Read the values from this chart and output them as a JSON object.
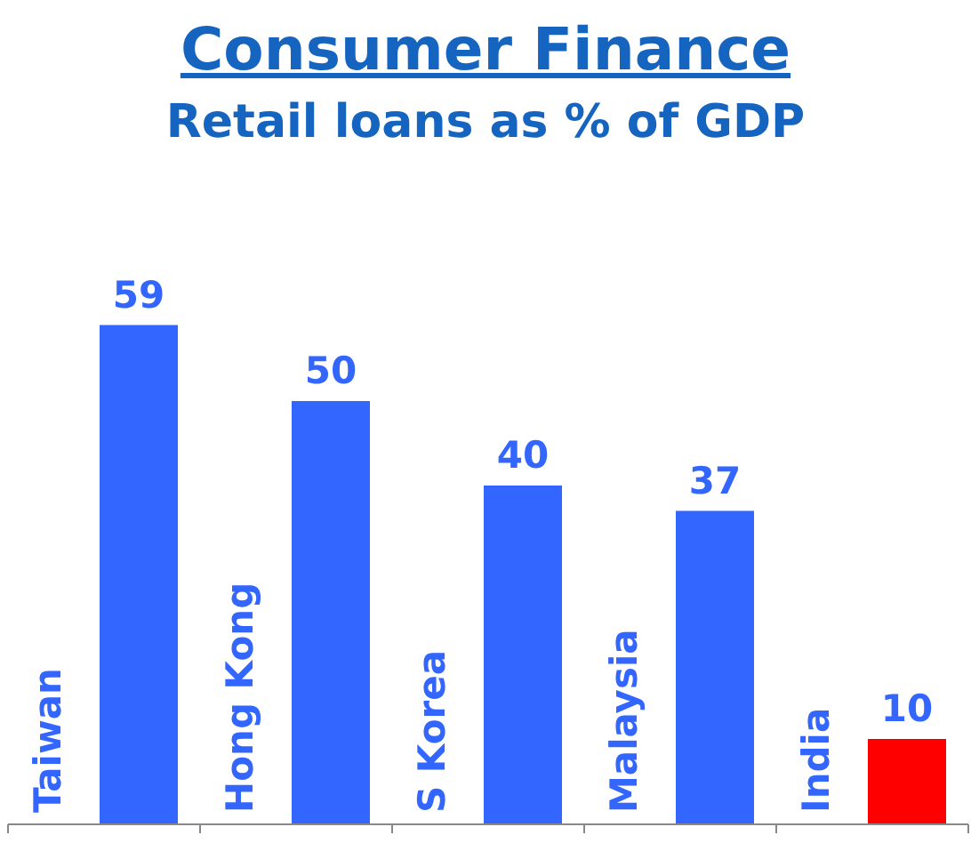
{
  "chart_data": {
    "type": "bar",
    "title": "Consumer Finance",
    "subtitle": "Retail loans as % of GDP",
    "categories": [
      "Taiwan",
      "Hong Kong",
      "S Korea",
      "Malaysia",
      "India"
    ],
    "values": [
      59,
      50,
      40,
      37,
      10
    ],
    "colors": [
      "#3366ff",
      "#3366ff",
      "#3366ff",
      "#3366ff",
      "#ff0000"
    ],
    "data_labels": true,
    "grid": false,
    "legend": false
  }
}
